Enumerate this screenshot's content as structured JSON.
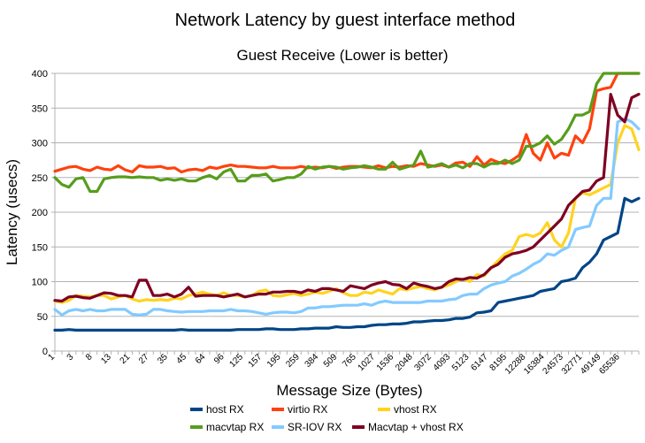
{
  "chart_data": {
    "type": "line",
    "title": "Network Latency by guest interface method",
    "subtitle": "Guest Receive (Lower is better)",
    "xlabel": "Message Size (Bytes)",
    "ylabel": "Latency (usecs)",
    "ylim": [
      0,
      400
    ],
    "yticks": [
      0,
      50,
      100,
      150,
      200,
      250,
      300,
      350,
      400
    ],
    "grid": true,
    "legend": "bottom",
    "x_tick_labels": [
      "1",
      "3",
      "8",
      "13",
      "21",
      "27",
      "35",
      "45",
      "64",
      "96",
      "125",
      "157",
      "195",
      "259",
      "384",
      "509",
      "765",
      "1027",
      "1536",
      "2048",
      "3072",
      "4093",
      "5123",
      "6147",
      "8195",
      "12288",
      "16384",
      "24573",
      "32771",
      "49149",
      "65536"
    ],
    "series": [
      {
        "name": "host RX",
        "color": "#004586",
        "values": [
          30,
          30,
          31,
          30,
          30,
          30,
          30,
          30,
          30,
          30,
          30,
          30,
          30,
          30,
          30,
          30,
          30,
          30,
          31,
          30,
          30,
          30,
          30,
          30,
          30,
          30,
          31,
          31,
          31,
          31,
          32,
          32,
          31,
          31,
          31,
          32,
          32,
          33,
          33,
          33,
          35,
          34,
          34,
          35,
          35,
          37,
          38,
          38,
          39,
          39,
          40,
          42,
          42,
          43,
          44,
          44,
          45,
          47,
          47,
          49,
          55,
          56,
          58,
          70,
          72,
          74,
          76,
          78,
          80,
          86,
          88,
          90,
          100,
          102,
          105,
          120,
          128,
          140,
          160,
          165,
          170,
          220,
          215,
          220
        ]
      },
      {
        "name": "virtio RX",
        "color": "#ff420e",
        "values": [
          259,
          262,
          265,
          266,
          262,
          260,
          265,
          262,
          261,
          267,
          261,
          258,
          267,
          265,
          265,
          266,
          263,
          264,
          258,
          261,
          262,
          260,
          265,
          263,
          266,
          268,
          266,
          266,
          265,
          264,
          264,
          266,
          264,
          264,
          264,
          266,
          264,
          265,
          264,
          266,
          263,
          265,
          266,
          266,
          265,
          264,
          267,
          264,
          266,
          265,
          267,
          266,
          270,
          268,
          266,
          268,
          265,
          271,
          272,
          266,
          280,
          268,
          276,
          272,
          270,
          275,
          282,
          312,
          285,
          275,
          300,
          278,
          285,
          282,
          310,
          300,
          320,
          375,
          378,
          380,
          400,
          400,
          400,
          400
        ]
      },
      {
        "name": "vhost RX",
        "color": "#ffd320",
        "values": [
          72,
          70,
          73,
          80,
          79,
          78,
          80,
          80,
          75,
          78,
          80,
          75,
          72,
          74,
          73,
          74,
          73,
          76,
          75,
          80,
          82,
          85,
          82,
          80,
          84,
          80,
          80,
          78,
          80,
          86,
          88,
          80,
          79,
          81,
          83,
          80,
          82,
          85,
          83,
          86,
          90,
          84,
          80,
          80,
          85,
          83,
          88,
          85,
          82,
          90,
          88,
          91,
          93,
          90,
          88,
          92,
          95,
          100,
          104,
          100,
          110,
          108,
          120,
          130,
          140,
          145,
          165,
          168,
          165,
          170,
          185,
          160,
          150,
          170,
          220,
          228,
          225,
          230,
          235,
          240,
          300,
          325,
          320,
          290
        ]
      },
      {
        "name": "macvtap RX",
        "color": "#579d1c",
        "values": [
          250,
          240,
          236,
          248,
          250,
          230,
          230,
          248,
          250,
          251,
          251,
          250,
          251,
          250,
          250,
          246,
          248,
          246,
          248,
          245,
          245,
          250,
          253,
          248,
          258,
          262,
          245,
          245,
          253,
          253,
          255,
          245,
          247,
          250,
          250,
          255,
          266,
          262,
          265,
          266,
          265,
          262,
          264,
          265,
          267,
          265,
          262,
          262,
          272,
          262,
          265,
          268,
          288,
          265,
          267,
          270,
          265,
          268,
          264,
          270,
          270,
          265,
          270,
          270,
          275,
          270,
          275,
          295,
          295,
          300,
          310,
          298,
          305,
          320,
          340,
          340,
          345,
          385,
          400,
          400,
          400,
          400,
          400,
          400
        ]
      },
      {
        "name": "SR-IOV RX",
        "color": "#83caff",
        "values": [
          60,
          52,
          58,
          60,
          58,
          60,
          58,
          58,
          60,
          60,
          60,
          53,
          52,
          53,
          60,
          60,
          58,
          57,
          56,
          57,
          57,
          57,
          58,
          58,
          58,
          60,
          58,
          58,
          57,
          55,
          53,
          55,
          56,
          56,
          55,
          57,
          62,
          62,
          64,
          64,
          65,
          66,
          66,
          66,
          68,
          66,
          70,
          72,
          70,
          70,
          70,
          70,
          70,
          72,
          72,
          72,
          74,
          75,
          80,
          82,
          82,
          90,
          95,
          98,
          100,
          108,
          112,
          118,
          125,
          130,
          140,
          138,
          145,
          150,
          175,
          178,
          180,
          210,
          220,
          220,
          330,
          335,
          330,
          320
        ]
      },
      {
        "name": "Macvtap + vhost RX",
        "color": "#7e0021",
        "values": [
          73,
          72,
          78,
          79,
          77,
          76,
          80,
          84,
          83,
          80,
          80,
          78,
          102,
          102,
          80,
          80,
          82,
          78,
          82,
          92,
          79,
          80,
          80,
          80,
          78,
          80,
          82,
          78,
          80,
          82,
          82,
          85,
          85,
          86,
          86,
          84,
          88,
          86,
          90,
          90,
          88,
          86,
          94,
          92,
          90,
          95,
          98,
          100,
          96,
          95,
          90,
          98,
          95,
          93,
          90,
          92,
          100,
          104,
          103,
          106,
          105,
          110,
          120,
          125,
          135,
          140,
          142,
          145,
          150,
          160,
          170,
          180,
          190,
          210,
          220,
          230,
          232,
          245,
          250,
          370,
          340,
          330,
          365,
          370
        ]
      }
    ]
  }
}
